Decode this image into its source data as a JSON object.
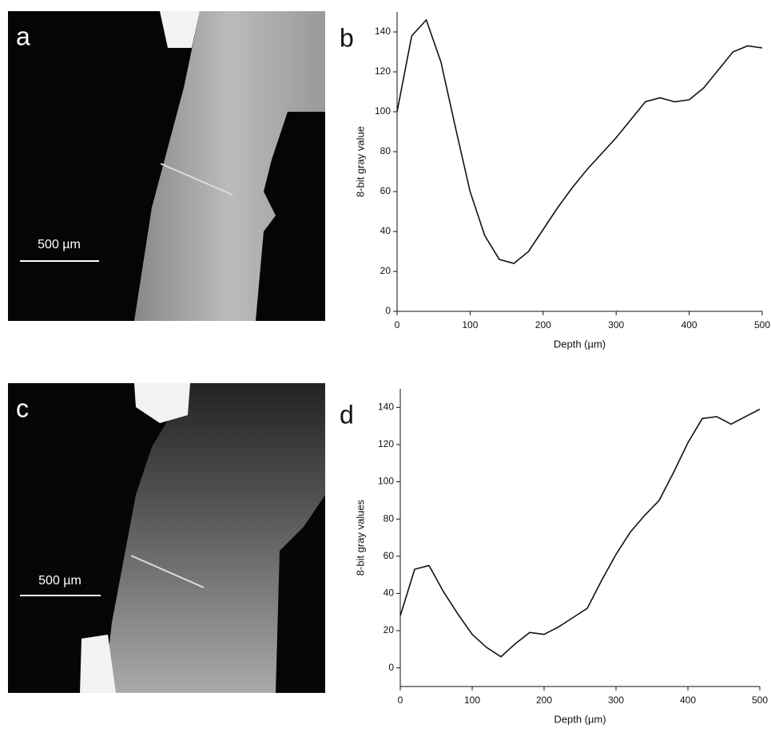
{
  "images": [
    {
      "panel_label": "a",
      "scale_bar": "500 µm"
    },
    {
      "panel_label": "c",
      "scale_bar": "500 µm"
    }
  ],
  "chart_data": [
    {
      "type": "line",
      "panel_label": "b",
      "x_label": "Depth (µm)",
      "y_label": "8-bit gray value",
      "x": [
        0,
        20,
        40,
        60,
        80,
        100,
        120,
        140,
        160,
        180,
        200,
        220,
        240,
        260,
        280,
        300,
        320,
        340,
        360,
        380,
        400,
        420,
        440,
        460,
        480,
        500
      ],
      "series": [
        {
          "color": "#111111",
          "values": [
            100,
            138,
            146,
            125,
            92,
            60,
            38,
            26,
            24,
            30,
            41,
            52,
            62,
            71,
            79,
            87,
            96,
            105,
            107,
            105,
            106,
            112,
            121,
            130,
            133,
            132
          ]
        }
      ],
      "xlim": [
        0,
        500
      ],
      "ylim": [
        0,
        150
      ],
      "xticks": [
        0,
        100,
        200,
        300,
        400,
        500
      ],
      "yticks": [
        0,
        20,
        40,
        60,
        80,
        100,
        120,
        140
      ]
    },
    {
      "type": "line",
      "panel_label": "d",
      "x_label": "Depth (µm)",
      "y_label": "8-bit gray values",
      "x": [
        0,
        20,
        40,
        60,
        80,
        100,
        120,
        140,
        160,
        180,
        200,
        220,
        240,
        260,
        280,
        300,
        320,
        340,
        360,
        380,
        400,
        420,
        440,
        460,
        480,
        500
      ],
      "series": [
        {
          "color": "#111111",
          "values": [
            28,
            53,
            55,
            41,
            29,
            18,
            11,
            6,
            13,
            19,
            18,
            22,
            27,
            32,
            47,
            61,
            73,
            82,
            90,
            105,
            121,
            134,
            135,
            131,
            135,
            139
          ]
        }
      ],
      "xlim": [
        0,
        500
      ],
      "ylim": [
        -10,
        150
      ],
      "xticks": [
        0,
        100,
        200,
        300,
        400,
        500
      ],
      "yticks": [
        0,
        20,
        40,
        60,
        80,
        100,
        120,
        140
      ]
    }
  ]
}
